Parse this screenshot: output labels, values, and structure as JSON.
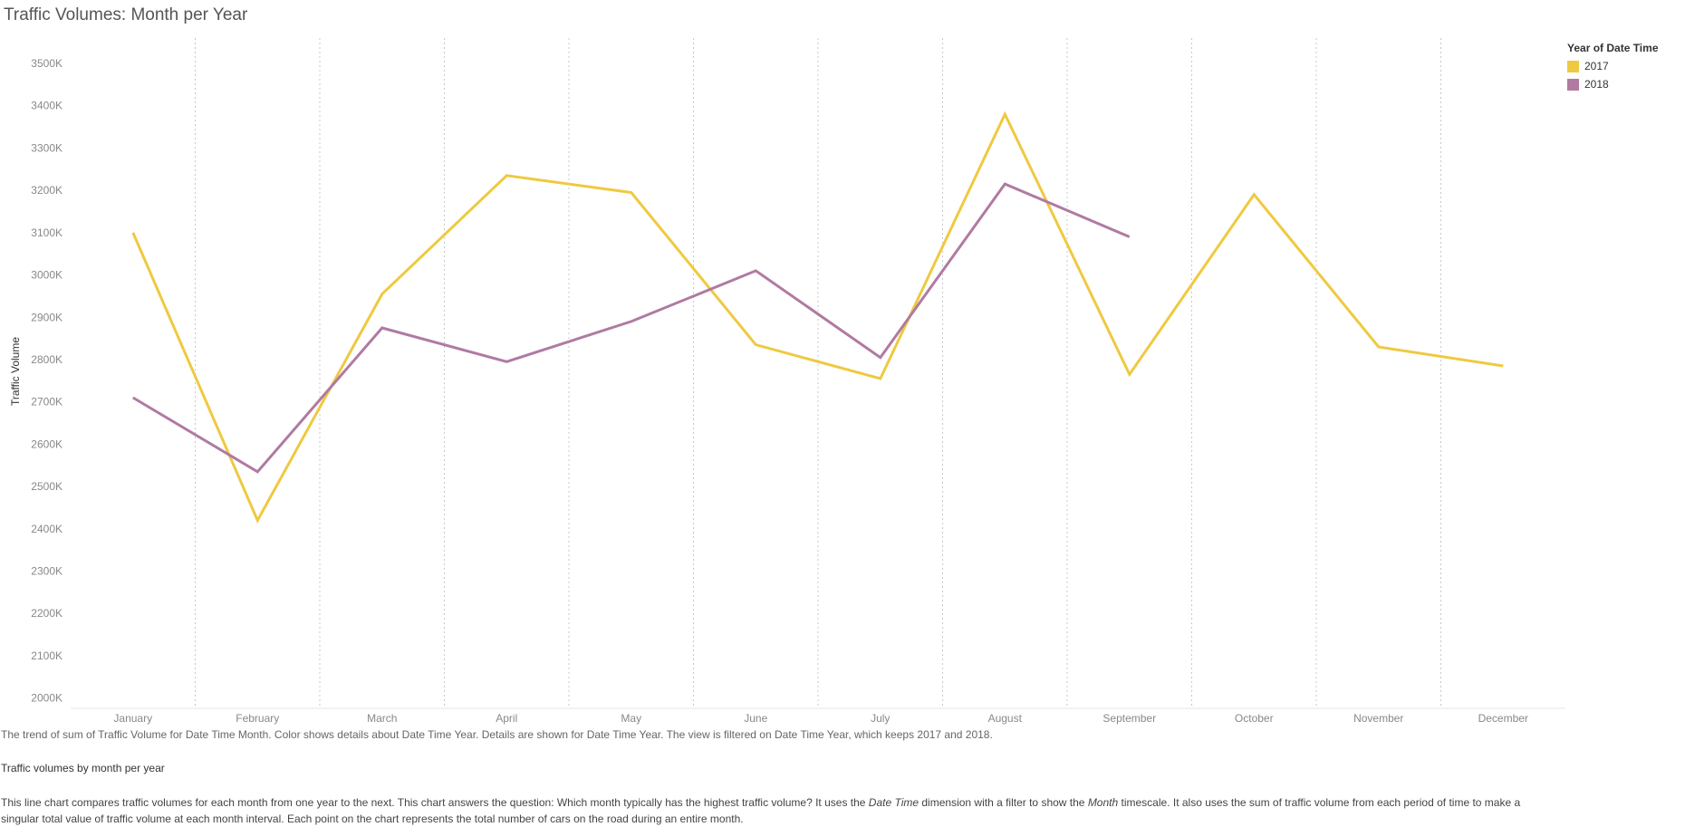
{
  "title": "Traffic Volumes: Month per Year",
  "chart_data": {
    "type": "line",
    "title": "Traffic Volumes: Month per Year",
    "xlabel": "",
    "ylabel": "Traffic Volume",
    "categories": [
      "January",
      "February",
      "March",
      "April",
      "May",
      "June",
      "July",
      "August",
      "September",
      "October",
      "November",
      "December"
    ],
    "ylim": [
      1980,
      3560
    ],
    "yticks": [
      2000,
      2100,
      2200,
      2300,
      2400,
      2500,
      2600,
      2700,
      2800,
      2900,
      3000,
      3100,
      3200,
      3300,
      3400,
      3500
    ],
    "ytick_labels": [
      "2000K",
      "2100K",
      "2200K",
      "2300K",
      "2400K",
      "2500K",
      "2600K",
      "2700K",
      "2800K",
      "2900K",
      "3000K",
      "3100K",
      "3200K",
      "3300K",
      "3400K",
      "3500K"
    ],
    "series": [
      {
        "name": "2017",
        "color": "#efc940",
        "values": [
          3100,
          2420,
          2955,
          3235,
          3195,
          2835,
          2755,
          3380,
          2765,
          3190,
          2830,
          2785
        ]
      },
      {
        "name": "2018",
        "color": "#b07aa1",
        "values": [
          2710,
          2535,
          2875,
          2795,
          2890,
          3010,
          2805,
          3215,
          3090,
          null,
          null,
          null
        ]
      }
    ],
    "grid": {
      "x": true,
      "y": false
    },
    "legend": {
      "title": "Year of Date Time",
      "position": "top-right"
    }
  },
  "caption": "The trend of sum of Traffic Volume for Date Time Month. Color shows details about Date Time Year. Details are shown for Date Time Year. The view is filtered on Date Time Year, which keeps 2017 and 2018.",
  "subheading": "Traffic volumes by month per year",
  "description": {
    "part1": "This line chart compares traffic volumes for each month from one year to the next. This chart answers the question: Which month typically has the highest traffic volume? It uses the ",
    "em1": "Date Time",
    "part2": " dimension with a filter to show the ",
    "em2": "Month",
    "part3": " timescale. It also uses the sum of traffic volume from each period of time to make a singular total value of traffic volume at each month interval. Each point on the chart represents the total number of cars on the road during an entire month."
  }
}
